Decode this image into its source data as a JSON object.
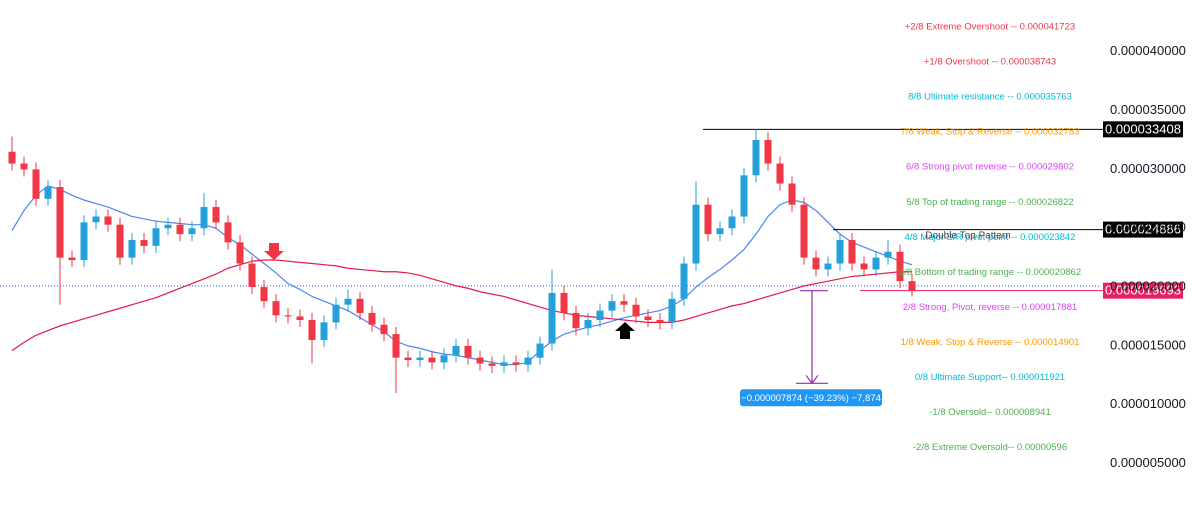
{
  "chart_data": {
    "type": "candlestick",
    "ylim": [
      1.9e-06,
      4.44e-05
    ],
    "yticks": [
      {
        "value": 4e-05,
        "label": "0.000040000"
      },
      {
        "value": 3.5e-05,
        "label": "0.000035000"
      },
      {
        "value": 3e-05,
        "label": "0.000030000"
      },
      {
        "value": 2.5e-05,
        "label": "0.000025000"
      },
      {
        "value": 2e-05,
        "label": "0.000020000"
      },
      {
        "value": 1.5e-05,
        "label": "0.000015000"
      },
      {
        "value": 1e-05,
        "label": "0.000010000"
      },
      {
        "value": 5e-06,
        "label": "0.000005000"
      }
    ],
    "grid": false,
    "up_color": "#26a0da",
    "down_color": "#f23645",
    "ohlc": {
      "open": [
        3.15e-05,
        3.05e-05,
        3e-05,
        2.75e-05,
        2.85e-05,
        2.25e-05,
        2.23e-05,
        2.55e-05,
        2.6e-05,
        2.53e-05,
        2.25e-05,
        2.4e-05,
        2.35e-05,
        2.5e-05,
        2.53e-05,
        2.45e-05,
        2.5e-05,
        2.68e-05,
        2.55e-05,
        2.38e-05,
        2.2e-05,
        2e-05,
        1.88e-05,
        1.76e-05,
        1.75e-05,
        1.72e-05,
        1.55e-05,
        1.7e-05,
        1.85e-05,
        1.9e-05,
        1.78e-05,
        1.68e-05,
        1.6e-05,
        1.4e-05,
        1.38e-05,
        1.4e-05,
        1.36e-05,
        1.42e-05,
        1.5e-05,
        1.4e-05,
        1.35e-05,
        1.33e-05,
        1.36e-05,
        1.34e-05,
        1.4e-05,
        1.52e-05,
        1.95e-05,
        1.78e-05,
        1.65e-05,
        1.72e-05,
        1.8e-05,
        1.88e-05,
        1.85e-05,
        1.75e-05,
        1.72e-05,
        1.7e-05,
        1.9e-05,
        2.2e-05,
        2.7e-05,
        2.45e-05,
        2.5e-05,
        2.6e-05,
        2.95e-05,
        3.25e-05,
        3.05e-05,
        2.88e-05,
        2.7e-05,
        2.25e-05,
        2.15e-05,
        2.2e-05,
        2.4e-05,
        2.2e-05,
        2.15e-05,
        2.25e-05,
        2.3e-05,
        2.05e-05
      ],
      "high": [
        3.28e-05,
        3.11e-05,
        3.06e-05,
        2.91e-05,
        2.91e-05,
        2.31e-05,
        2.61e-05,
        2.66e-05,
        2.66e-05,
        2.59e-05,
        2.46e-05,
        2.46e-05,
        2.56e-05,
        2.59e-05,
        2.59e-05,
        2.56e-05,
        2.8e-05,
        2.74e-05,
        2.61e-05,
        2.44e-05,
        2.26e-05,
        2.06e-05,
        1.94e-05,
        1.82e-05,
        1.81e-05,
        1.78e-05,
        1.76e-05,
        1.91e-05,
        1.98e-05,
        1.96e-05,
        1.84e-05,
        1.74e-05,
        1.66e-05,
        1.46e-05,
        1.46e-05,
        1.46e-05,
        1.48e-05,
        1.56e-05,
        1.56e-05,
        1.46e-05,
        1.41e-05,
        1.42e-05,
        1.42e-05,
        1.46e-05,
        1.58e-05,
        2.15e-05,
        2.01e-05,
        1.84e-05,
        1.78e-05,
        1.86e-05,
        1.94e-05,
        1.94e-05,
        1.91e-05,
        1.81e-05,
        1.78e-05,
        1.96e-05,
        2.26e-05,
        2.9e-05,
        2.76e-05,
        2.56e-05,
        2.66e-05,
        3.01e-05,
        3.34e-05,
        3.32e-05,
        3.11e-05,
        2.94e-05,
        2.76e-05,
        2.31e-05,
        2.26e-05,
        2.46e-05,
        2.46e-05,
        2.26e-05,
        2.31e-05,
        2.4e-05,
        2.36e-05,
        2.11e-05
      ],
      "low": [
        2.99e-05,
        2.94e-05,
        2.69e-05,
        2.69e-05,
        1.85e-05,
        2.17e-05,
        2.17e-05,
        2.49e-05,
        2.47e-05,
        2.19e-05,
        2.19e-05,
        2.29e-05,
        2.29e-05,
        2.44e-05,
        2.39e-05,
        2.39e-05,
        2.44e-05,
        2.49e-05,
        2.32e-05,
        2.14e-05,
        1.94e-05,
        1.82e-05,
        1.7e-05,
        1.69e-05,
        1.66e-05,
        1.35e-05,
        1.49e-05,
        1.64e-05,
        1.79e-05,
        1.72e-05,
        1.62e-05,
        1.54e-05,
        1.1e-05,
        1.32e-05,
        1.32e-05,
        1.3e-05,
        1.3e-05,
        1.36e-05,
        1.34e-05,
        1.29e-05,
        1.27e-05,
        1.27e-05,
        1.28e-05,
        1.28e-05,
        1.34e-05,
        1.46e-05,
        1.72e-05,
        1.59e-05,
        1.59e-05,
        1.66e-05,
        1.74e-05,
        1.79e-05,
        1.69e-05,
        1.66e-05,
        1.64e-05,
        1.64e-05,
        1.84e-05,
        2.14e-05,
        2.39e-05,
        2.39e-05,
        2.44e-05,
        2.54e-05,
        2.89e-05,
        2.99e-05,
        2.82e-05,
        2.64e-05,
        2.19e-05,
        2.09e-05,
        2.09e-05,
        2.14e-05,
        2.14e-05,
        2.09e-05,
        2.09e-05,
        2.19e-05,
        1.99e-05,
        1.92e-05
      ],
      "close": [
        3.05e-05,
        3e-05,
        2.75e-05,
        2.85e-05,
        2.25e-05,
        2.23e-05,
        2.55e-05,
        2.6e-05,
        2.53e-05,
        2.25e-05,
        2.4e-05,
        2.35e-05,
        2.5e-05,
        2.53e-05,
        2.45e-05,
        2.5e-05,
        2.68e-05,
        2.55e-05,
        2.38e-05,
        2.2e-05,
        2e-05,
        1.88e-05,
        1.76e-05,
        1.75e-05,
        1.72e-05,
        1.55e-05,
        1.7e-05,
        1.85e-05,
        1.9e-05,
        1.78e-05,
        1.68e-05,
        1.6e-05,
        1.4e-05,
        1.38e-05,
        1.4e-05,
        1.36e-05,
        1.42e-05,
        1.5e-05,
        1.4e-05,
        1.35e-05,
        1.33e-05,
        1.36e-05,
        1.34e-05,
        1.4e-05,
        1.52e-05,
        1.95e-05,
        1.78e-05,
        1.65e-05,
        1.72e-05,
        1.8e-05,
        1.88e-05,
        1.85e-05,
        1.75e-05,
        1.72e-05,
        1.7e-05,
        1.9e-05,
        2.2e-05,
        2.7e-05,
        2.45e-05,
        2.5e-05,
        2.6e-05,
        2.95e-05,
        3.25e-05,
        3.05e-05,
        2.88e-05,
        2.7e-05,
        2.25e-05,
        2.15e-05,
        2.2e-05,
        2.4e-05,
        2.2e-05,
        2.15e-05,
        2.25e-05,
        2.3e-05,
        2.05e-05,
        1.9693e-05
      ]
    },
    "moving_averages": [
      {
        "color": "#4a86f0",
        "values": [
          2.48e-05,
          2.65e-05,
          2.78e-05,
          2.86e-05,
          2.83e-05,
          2.78e-05,
          2.74e-05,
          2.71e-05,
          2.68e-05,
          2.64e-05,
          2.6e-05,
          2.58e-05,
          2.56e-05,
          2.55e-05,
          2.54e-05,
          2.53e-05,
          2.53e-05,
          2.5e-05,
          2.42e-05,
          2.36e-05,
          2.28e-05,
          2.2e-05,
          2.12e-05,
          2.03e-05,
          1.98e-05,
          1.92e-05,
          1.88e-05,
          1.84e-05,
          1.8e-05,
          1.74e-05,
          1.68e-05,
          1.62e-05,
          1.54e-05,
          1.5e-05,
          1.48e-05,
          1.45e-05,
          1.43e-05,
          1.42e-05,
          1.4e-05,
          1.38e-05,
          1.36e-05,
          1.34e-05,
          1.34e-05,
          1.36e-05,
          1.46e-05,
          1.54e-05,
          1.6e-05,
          1.63e-05,
          1.66e-05,
          1.68e-05,
          1.71e-05,
          1.74e-05,
          1.76e-05,
          1.78e-05,
          1.8e-05,
          1.84e-05,
          1.9e-05,
          2e-05,
          2.08e-05,
          2.15e-05,
          2.23e-05,
          2.32e-05,
          2.45e-05,
          2.6e-05,
          2.7e-05,
          2.74e-05,
          2.72e-05,
          2.65e-05,
          2.55e-05,
          2.45e-05,
          2.38e-05,
          2.34e-05,
          2.3e-05,
          2.26e-05,
          2.22e-05,
          2.19e-05
        ]
      },
      {
        "color": "#e5194f",
        "values": [
          1.46e-05,
          1.53e-05,
          1.59e-05,
          1.63e-05,
          1.67e-05,
          1.7e-05,
          1.73e-05,
          1.76e-05,
          1.79e-05,
          1.82e-05,
          1.85e-05,
          1.88e-05,
          1.91e-05,
          1.95e-05,
          1.99e-05,
          2.03e-05,
          2.07e-05,
          2.11e-05,
          2.16e-05,
          2.19e-05,
          2.22e-05,
          2.23e-05,
          2.23e-05,
          2.22e-05,
          2.21e-05,
          2.2e-05,
          2.19e-05,
          2.18e-05,
          2.16e-05,
          2.15e-05,
          2.14e-05,
          2.13e-05,
          2.13e-05,
          2.12e-05,
          2.1e-05,
          2.07e-05,
          2.04e-05,
          2.01e-05,
          1.99e-05,
          1.96e-05,
          1.94e-05,
          1.92e-05,
          1.89e-05,
          1.86e-05,
          1.83e-05,
          1.8e-05,
          1.78e-05,
          1.76e-05,
          1.75e-05,
          1.74e-05,
          1.73e-05,
          1.72e-05,
          1.71e-05,
          1.7e-05,
          1.7e-05,
          1.7e-05,
          1.72e-05,
          1.75e-05,
          1.78e-05,
          1.81e-05,
          1.84e-05,
          1.86e-05,
          1.89e-05,
          1.92e-05,
          1.95e-05,
          1.98e-05,
          2.01e-05,
          2.03e-05,
          2.05e-05,
          2.07e-05,
          2.09e-05,
          2.1e-05,
          2.11e-05,
          2.12e-05,
          2.13e-05,
          2.13e-05
        ]
      }
    ],
    "dotted_line": {
      "value": 2.01e-05,
      "color": "#2962ff"
    },
    "levels": [
      {
        "name": "+2/8 Extreme Overshoot --",
        "value": 4.1723e-05,
        "value_label": "0.000041723",
        "color": "#f23645"
      },
      {
        "name": "+1/8 Overshoot --",
        "value": 3.8743e-05,
        "value_label": "0.000038743",
        "color": "#f23645"
      },
      {
        "name": "8/8 Ultimate resistance --",
        "value": 3.5763e-05,
        "value_label": "0.000035763",
        "color": "#00bcd4"
      },
      {
        "name": "7/8 Weak, Stop & Reverse --",
        "value": 3.2783e-05,
        "value_label": "0.000032783",
        "color": "#ff9800"
      },
      {
        "name": "6/8 Strong pivot reverse --",
        "value": 2.9802e-05,
        "value_label": "0.000029802",
        "color": "#e040fb"
      },
      {
        "name": "5/8 Top of trading range --",
        "value": 2.6822e-05,
        "value_label": "0.000026822",
        "color": "#4caf50"
      },
      {
        "name": "4/8 Major S/R pivot point --",
        "value": 2.3842e-05,
        "value_label": "0.000023842",
        "color": "#00bcd4"
      },
      {
        "name": "3/8 Bottom of trading range --",
        "value": 2.0862e-05,
        "value_label": "0.000020862",
        "color": "#4caf50"
      },
      {
        "name": "2/8 Strong, Pivot, reverse --",
        "value": 1.7881e-05,
        "value_label": "0.000017881",
        "color": "#e040fb"
      },
      {
        "name": "1/8 Weak, Stop & Reverse --",
        "value": 1.4901e-05,
        "value_label": "0.000014901",
        "color": "#ff9800"
      },
      {
        "name": "0/8 Ultimate Support--",
        "value": 1.1921e-05,
        "value_label": "0.000011921",
        "color": "#00bcd4"
      },
      {
        "name": "-1/8 Oversold--",
        "value": 8.941e-06,
        "value_label": "0.000008941",
        "color": "#4caf50"
      },
      {
        "name": "-2/8 Extreme Oversold--",
        "value": 5.96e-06,
        "value_label": "0.00000596",
        "color": "#4caf50"
      }
    ],
    "price_tags": [
      {
        "value": 3.3408e-05,
        "label": "0.000033408",
        "color": "#000000"
      },
      {
        "value": 2.4886e-05,
        "label": "0.000024886",
        "color": "#000000"
      },
      {
        "value": 1.9693e-05,
        "label": "0.000019693",
        "color": "#e91e63"
      }
    ],
    "annotations": [
      "Double Top Pattern"
    ],
    "measure": {
      "change": -7.874e-06,
      "label": "−0.000007874 (−39.23%) −7,874",
      "color": "#9c27b0",
      "box_color": "#2196f3"
    }
  }
}
